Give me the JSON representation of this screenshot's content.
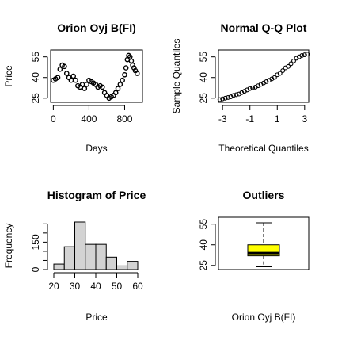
{
  "chart_data": [
    {
      "type": "scatter",
      "title": "Orion Oyj B(FI)",
      "xlabel": "Days",
      "ylabel": "Price",
      "xlim": [
        -30,
        1000
      ],
      "ylim": [
        22,
        60
      ],
      "xticks": [
        0,
        400,
        800
      ],
      "xtick_labels": [
        "0",
        "400",
        "800"
      ],
      "yticks": [
        25,
        40,
        55
      ],
      "ytick_labels": [
        "25",
        "40",
        "55"
      ],
      "grid": false,
      "series": [
        {
          "x": [
            0,
            25,
            50,
            75,
            100,
            125,
            150,
            175,
            200,
            225,
            250,
            275,
            300,
            325,
            350,
            375,
            400,
            425,
            450,
            475,
            500,
            525,
            550,
            575,
            600,
            625,
            650,
            675,
            700,
            725,
            750,
            775,
            800,
            815,
            830,
            845,
            860,
            875,
            890,
            905,
            920,
            940
          ],
          "y": [
            38,
            39,
            40,
            46,
            49,
            48,
            43,
            40,
            38,
            41,
            38,
            34,
            33,
            35,
            32,
            35,
            38,
            37,
            36,
            35,
            33,
            34,
            33,
            29,
            27,
            25,
            26,
            27,
            29,
            32,
            35,
            38,
            42,
            47,
            53,
            56,
            55,
            52,
            49,
            47,
            45,
            43
          ]
        }
      ]
    },
    {
      "type": "scatter",
      "title": "Normal Q-Q Plot",
      "xlabel": "Theoretical Quantiles",
      "ylabel": "Sample Quantiles",
      "xlim": [
        -3.3,
        3.3
      ],
      "ylim": [
        22,
        60
      ],
      "xticks": [
        -3,
        -1,
        1,
        3
      ],
      "xtick_labels": [
        "-3",
        "-1",
        "1",
        "3"
      ],
      "yticks": [
        25,
        40,
        55
      ],
      "ytick_labels": [
        "25",
        "40",
        "55"
      ],
      "grid": false,
      "series": [
        {
          "x": [
            -3.2,
            -3.0,
            -2.8,
            -2.6,
            -2.4,
            -2.2,
            -2.0,
            -1.8,
            -1.6,
            -1.4,
            -1.2,
            -1.0,
            -0.8,
            -0.6,
            -0.4,
            -0.2,
            0.0,
            0.2,
            0.4,
            0.6,
            0.8,
            1.0,
            1.2,
            1.4,
            1.6,
            1.8,
            2.0,
            2.2,
            2.4,
            2.6,
            2.8,
            3.0,
            3.2
          ],
          "y": [
            24,
            24.5,
            25,
            25.5,
            26,
            27,
            27.5,
            28,
            29,
            30,
            31,
            32,
            32.5,
            33,
            34,
            35,
            36,
            37,
            38,
            39,
            40,
            42,
            43,
            45,
            47,
            48,
            50,
            52,
            54,
            55,
            56,
            56.5,
            57
          ]
        }
      ]
    },
    {
      "type": "bar",
      "title": "Histogram of Price",
      "xlabel": "Price",
      "ylabel": "Frequency",
      "xlim": [
        20,
        60
      ],
      "ylim": [
        0,
        260
      ],
      "bin_edges": [
        20,
        25,
        30,
        35,
        40,
        45,
        50,
        55,
        60
      ],
      "values": [
        30,
        125,
        260,
        138,
        138,
        68,
        20,
        45
      ],
      "xticks": [
        20,
        30,
        40,
        50,
        60
      ],
      "xtick_labels": [
        "20",
        "30",
        "40",
        "50",
        "60"
      ],
      "yticks": [
        0,
        150
      ],
      "ytick_labels": [
        "0",
        "150"
      ],
      "bar_color": "#d3d3d3",
      "grid": false
    },
    {
      "type": "box",
      "title": "Outliers",
      "xlabel": "Orion Oyj B(FI)",
      "ylim": [
        22,
        60
      ],
      "yticks": [
        25,
        40,
        55
      ],
      "ytick_labels": [
        "25",
        "40",
        "55"
      ],
      "min": 24,
      "q1": 32,
      "median": 34,
      "q3": 40,
      "max": 56,
      "box_color": "#ffff00",
      "grid": false
    }
  ]
}
